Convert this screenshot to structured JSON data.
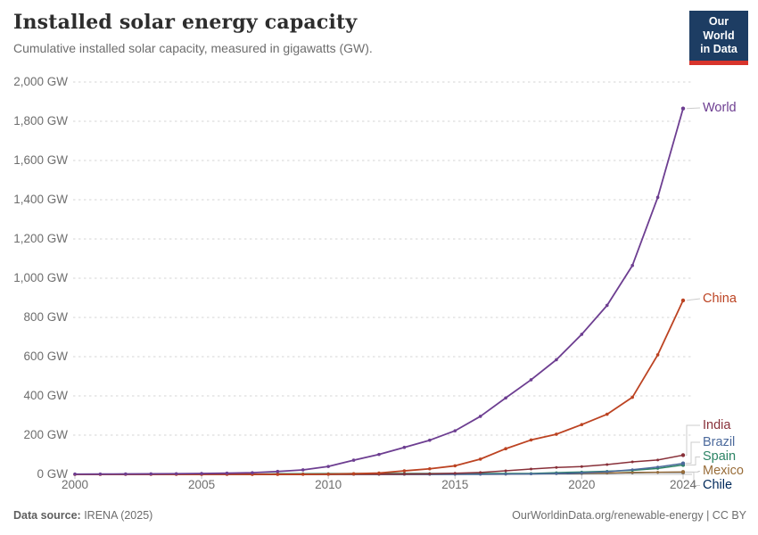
{
  "header": {
    "title": "Installed solar energy capacity",
    "subtitle": "Cumulative installed solar capacity, measured in gigawatts (GW).",
    "logo": {
      "line1": "Our World",
      "line2": "in Data"
    }
  },
  "footer": {
    "source_prefix": "Data source:",
    "source_text": " IRENA (2025)",
    "license_text": "OurWorldinData.org/renewable-energy | CC BY"
  },
  "colors": {
    "logo_navy": "#1d3d63",
    "logo_red": "#d7342c",
    "grid": "#d6d6d6",
    "axis_baseline": "#c4c4c4",
    "connector": "#cccccc",
    "axis_text": "#6e6e6e"
  },
  "chart_data": {
    "type": "line",
    "title": "Installed solar energy capacity",
    "subtitle": "Cumulative installed solar capacity, measured in gigawatts (GW).",
    "unit": "GW",
    "grid": "horizontal-dashed",
    "legend": "entity-labels-at-right-edge",
    "ylim": [
      0,
      2000
    ],
    "yticks": [
      0,
      200,
      400,
      600,
      800,
      1000,
      1200,
      1400,
      1600,
      1800,
      2000
    ],
    "xticks": [
      2000,
      2005,
      2010,
      2015,
      2020,
      2024
    ],
    "x": [
      2000,
      2001,
      2002,
      2003,
      2004,
      2005,
      2006,
      2007,
      2008,
      2009,
      2010,
      2011,
      2012,
      2013,
      2014,
      2015,
      2016,
      2017,
      2018,
      2019,
      2020,
      2021,
      2022,
      2023,
      2024
    ],
    "series": [
      {
        "name": "World",
        "color": "#6d3e91",
        "values": [
          1.2,
          1.5,
          1.9,
          2.5,
          3.4,
          4.6,
          6.0,
          8.4,
          14.9,
          22.8,
          40.3,
          72.4,
          101.5,
          137.6,
          174.1,
          222.2,
          295.7,
          389.6,
          482.1,
          584.6,
          713.9,
          861.5,
          1064.9,
          1412.0,
          1865.0
        ]
      },
      {
        "name": "China",
        "color": "#bc4322",
        "values": [
          0.02,
          0.03,
          0.05,
          0.06,
          0.06,
          0.07,
          0.08,
          0.1,
          0.25,
          0.3,
          1.0,
          3.1,
          6.7,
          17.8,
          28.4,
          43.5,
          77.8,
          130.8,
          175.3,
          204.7,
          253.8,
          306.4,
          393.0,
          609.5,
          886.7
        ]
      },
      {
        "name": "India",
        "color": "#883039",
        "values": [
          0.001,
          0.002,
          0.004,
          0.005,
          0.006,
          0.008,
          0.01,
          0.02,
          0.02,
          0.03,
          0.09,
          0.57,
          1.2,
          1.7,
          3.0,
          5.6,
          9.9,
          18.0,
          27.4,
          35.1,
          39.5,
          49.9,
          63.9,
          73.1,
          98.0
        ]
      },
      {
        "name": "Brazil",
        "color": "#4c6a9c",
        "values": [
          0,
          0,
          0,
          0,
          0,
          0,
          0,
          0,
          0,
          0,
          0.001,
          0.001,
          0.007,
          0.03,
          0.09,
          0.1,
          0.15,
          1.1,
          2.5,
          4.6,
          7.9,
          13.9,
          24.1,
          37.4,
          56.0
        ]
      },
      {
        "name": "Spain",
        "color": "#2c8465",
        "values": [
          0.001,
          0.003,
          0.006,
          0.01,
          0.02,
          0.05,
          0.13,
          0.64,
          3.4,
          3.4,
          3.9,
          4.3,
          4.6,
          4.7,
          4.7,
          4.7,
          4.7,
          4.7,
          4.8,
          8.8,
          11.8,
          15.7,
          20.5,
          30.0,
          48.0
        ]
      },
      {
        "name": "Mexico",
        "color": "#996d39",
        "values": [
          0.01,
          0.01,
          0.02,
          0.02,
          0.02,
          0.02,
          0.02,
          0.03,
          0.03,
          0.03,
          0.04,
          0.06,
          0.06,
          0.08,
          0.1,
          0.3,
          0.4,
          0.7,
          3.1,
          4.4,
          5.6,
          7.0,
          9.6,
          10.9,
          12.0
        ]
      },
      {
        "name": "Chile",
        "color": "#00295b",
        "values": [
          0,
          0,
          0,
          0,
          0,
          0,
          0,
          0,
          0,
          0,
          0,
          0.002,
          0.002,
          0.005,
          0.2,
          0.85,
          1.6,
          2.2,
          2.7,
          3.2,
          4.4,
          6.2,
          8.4,
          10.4,
          11.0
        ]
      }
    ]
  }
}
